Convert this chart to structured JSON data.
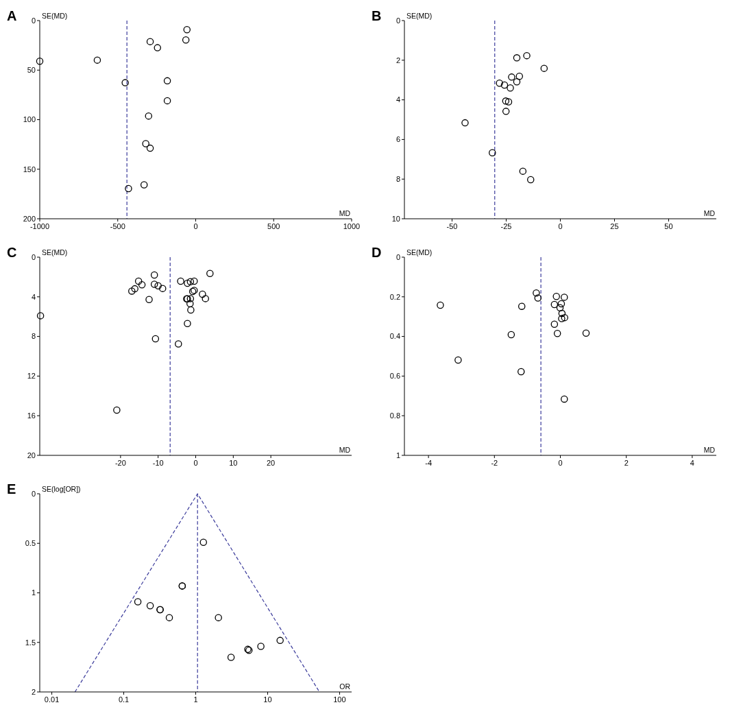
{
  "chart_data": [
    {
      "type": "scatter",
      "title": "A",
      "xlabel": "MD",
      "ylabel": "SE(MD)",
      "xlim": [
        -1000,
        1000
      ],
      "ylim": [
        200,
        0
      ],
      "xticks": [
        -1000,
        -500,
        0,
        500,
        1000
      ],
      "yticks": [
        0,
        50,
        100,
        150,
        200
      ],
      "marker": "circle",
      "grid": false,
      "series": [
        {
          "color": "#000000",
          "x": [
            -56,
            -63,
            -292,
            -245,
            -1000,
            -631,
            -452,
            -182,
            -182,
            -302,
            -320,
            -292,
            -331,
            -431
          ],
          "values": [
            9.2,
            19.6,
            21.2,
            27.4,
            41,
            39.9,
            62.7,
            60.8,
            80.9,
            96.3,
            124.2,
            128.8,
            165.7,
            169.6
          ]
        }
      ],
      "ref_lines": [
        {
          "axis": "x",
          "value": -441,
          "color": "#3b3b9b",
          "line_style": "dashed"
        }
      ]
    },
    {
      "type": "scatter",
      "title": "B",
      "xlabel": "MD",
      "ylabel": "SE(MD)",
      "xlim": [
        -72,
        72
      ],
      "ylim": [
        10,
        0
      ],
      "xticks": [
        -50,
        -25,
        0,
        25,
        50
      ],
      "yticks": [
        0,
        2,
        4,
        6,
        8,
        10
      ],
      "marker": "circle",
      "grid": false,
      "series": [
        {
          "color": "#000000",
          "x": [
            -15.5,
            -20.1,
            -7.5,
            -22.5,
            -18.9,
            -20.1,
            -28.1,
            -25.8,
            -23.1,
            -25.2,
            -23.9,
            -25.1,
            -44.0,
            -31.4,
            -17.3,
            -13.7
          ],
          "values": [
            1.77,
            1.88,
            2.41,
            2.85,
            2.81,
            3.09,
            3.16,
            3.25,
            3.4,
            4.06,
            4.1,
            4.58,
            5.16,
            6.67,
            7.6,
            8.03
          ]
        }
      ],
      "ref_lines": [
        {
          "axis": "x",
          "value": -30.3,
          "color": "#3b3b9b",
          "line_style": "dashed"
        }
      ]
    },
    {
      "type": "scatter",
      "title": "C",
      "xlabel": "MD",
      "ylabel": "SE(MD)",
      "xlim": [
        -41.5,
        41.5
      ],
      "ylim": [
        20,
        0
      ],
      "xticks": [
        -20,
        -10,
        0,
        10,
        20
      ],
      "yticks": [
        0,
        4,
        8,
        12,
        16,
        20
      ],
      "marker": "circle",
      "grid": false,
      "series": [
        {
          "color": "#000000",
          "x": [
            3.8,
            -11.0,
            -15.2,
            -14.3,
            -16.2,
            -17.0,
            -11.0,
            -10.0,
            -8.8,
            -12.4,
            -4.0,
            -2.2,
            -1.4,
            -0.4,
            -0.4,
            -0.8,
            1.8,
            2.6,
            -2.4,
            -2.2,
            -1.4,
            -1.5,
            -1.3,
            -2.2,
            -41.3,
            -10.7,
            -4.6,
            -21.0
          ],
          "values": [
            1.64,
            1.8,
            2.42,
            2.79,
            3.19,
            3.42,
            2.73,
            2.89,
            3.16,
            4.27,
            2.42,
            2.63,
            2.47,
            2.42,
            3.35,
            3.46,
            3.74,
            4.18,
            4.2,
            4.2,
            4.18,
            4.69,
            5.33,
            6.7,
            5.91,
            8.24,
            8.75,
            15.43
          ]
        }
      ],
      "ref_lines": [
        {
          "axis": "x",
          "value": -6.8,
          "color": "#3b3b9b",
          "line_style": "dashed"
        }
      ]
    },
    {
      "type": "scatter",
      "title": "D",
      "xlabel": "MD",
      "ylabel": "SE(MD)",
      "xlim": [
        -4.73,
        4.73
      ],
      "ylim": [
        1,
        0
      ],
      "xticks": [
        -4,
        -2,
        0,
        2,
        4
      ],
      "yticks": [
        0,
        0.2,
        0.4,
        0.6,
        0.8,
        1
      ],
      "marker": "circle",
      "grid": false,
      "series": [
        {
          "color": "#000000",
          "x": [
            -0.73,
            -0.68,
            -0.12,
            0.12,
            -3.64,
            -1.17,
            -0.18,
            0.03,
            -0.01,
            0.05,
            0.13,
            0.04,
            -0.18,
            -0.09,
            0.78,
            -1.49,
            -3.1,
            -1.19,
            0.12
          ],
          "values": [
            0.181,
            0.206,
            0.198,
            0.202,
            0.242,
            0.248,
            0.239,
            0.235,
            0.255,
            0.284,
            0.305,
            0.31,
            0.338,
            0.385,
            0.383,
            0.391,
            0.519,
            0.578,
            0.716
          ]
        }
      ],
      "ref_lines": [
        {
          "axis": "x",
          "value": -0.59,
          "color": "#3b3b9b",
          "line_style": "dashed"
        }
      ]
    },
    {
      "type": "scatter",
      "title": "E",
      "xlabel": "OR",
      "ylabel": "SE(log[OR])",
      "log": "x",
      "xlim": [
        0.0068,
        147
      ],
      "ylim": [
        2,
        0
      ],
      "xticks": [
        0.01,
        0.1,
        1,
        10,
        100
      ],
      "yticks": [
        0,
        0.5,
        1,
        1.5,
        2
      ],
      "grid": false,
      "series": [
        {
          "color": "#000000",
          "marker": "circle",
          "x": [
            1.28,
            0.65,
            0.65,
            0.157,
            0.233,
            0.32,
            0.32,
            0.43,
            2.07,
            3.1,
            5.3,
            5.5,
            8.05,
            14.9
          ],
          "values": [
            0.49,
            0.93,
            0.93,
            1.09,
            1.13,
            1.17,
            1.17,
            1.25,
            1.25,
            1.65,
            1.57,
            1.58,
            1.54,
            1.48
          ]
        },
        {
          "type": "line",
          "color": "#3b3b9b",
          "line_style": "dashed",
          "x": [
            0.021,
            1.06,
            52.4
          ],
          "values": [
            2,
            0,
            2
          ]
        }
      ],
      "ref_lines": [
        {
          "axis": "x",
          "value": 1.06,
          "color": "#3b3b9b",
          "line_style": "dashed"
        }
      ]
    }
  ]
}
